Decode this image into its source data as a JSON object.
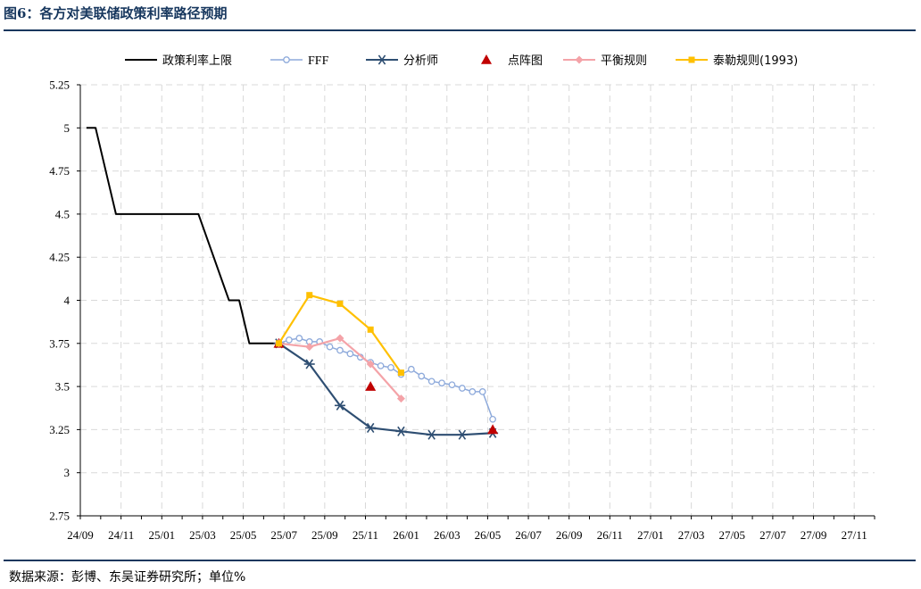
{
  "figure": {
    "title": "图6：各方对美联储政策利率路径预期",
    "source": "数据来源：彭博、东吴证券研究所；单位%"
  },
  "chart_data": {
    "type": "line",
    "categories": [
      "24/09",
      "24/10",
      "24/11",
      "24/12",
      "25/01",
      "25/02",
      "25/03",
      "25/04",
      "25/05",
      "25/06",
      "25/07",
      "25/08",
      "25/09",
      "25/10",
      "25/11",
      "25/12",
      "26/01",
      "26/02",
      "26/03",
      "26/04",
      "26/05",
      "26/06",
      "26/07",
      "26/08",
      "26/09",
      "26/10",
      "26/11",
      "26/12",
      "27/01",
      "27/02",
      "27/03",
      "27/04",
      "27/05",
      "27/06",
      "27/07",
      "27/08",
      "27/09",
      "27/10",
      "27/11",
      "27/12"
    ],
    "x_tick_labels": [
      "24/09",
      "24/11",
      "25/01",
      "25/03",
      "25/05",
      "25/07",
      "25/09",
      "25/11",
      "26/01",
      "26/03",
      "26/05",
      "26/07",
      "26/09",
      "26/11",
      "27/01",
      "27/03",
      "27/05",
      "27/07",
      "27/09",
      "27/11"
    ],
    "ylim": [
      2.75,
      5.25
    ],
    "y_ticks": [
      "2.75",
      "3",
      "3.25",
      "3.5",
      "3.75",
      "4",
      "4.25",
      "4.5",
      "4.75",
      "5",
      "5.25"
    ],
    "grid": true,
    "legend_position": "top",
    "series": [
      {
        "name": "政策利率上限",
        "color": "#000000",
        "marker": "none",
        "points": [
          [
            0.3,
            5.0
          ],
          [
            0.75,
            5.0
          ],
          [
            1.75,
            4.5
          ],
          [
            5.8,
            4.5
          ],
          [
            7.3,
            4.0
          ],
          [
            7.8,
            4.0
          ],
          [
            8.3,
            3.75
          ],
          [
            9.75,
            3.75
          ]
        ]
      },
      {
        "name": "FFF",
        "color": "#8eaadb",
        "marker": "circle",
        "points": [
          [
            9.75,
            3.75
          ],
          [
            10.25,
            3.77
          ],
          [
            10.75,
            3.78
          ],
          [
            11.25,
            3.76
          ],
          [
            11.75,
            3.76
          ],
          [
            12.25,
            3.73
          ],
          [
            12.75,
            3.71
          ],
          [
            13.25,
            3.69
          ],
          [
            13.75,
            3.67
          ],
          [
            14.25,
            3.64
          ],
          [
            14.75,
            3.62
          ],
          [
            15.25,
            3.61
          ],
          [
            15.75,
            3.57
          ],
          [
            16.25,
            3.6
          ],
          [
            16.75,
            3.56
          ],
          [
            17.25,
            3.53
          ],
          [
            17.75,
            3.52
          ],
          [
            18.25,
            3.51
          ],
          [
            18.75,
            3.49
          ],
          [
            19.25,
            3.47
          ],
          [
            19.75,
            3.47
          ],
          [
            20.25,
            3.31
          ]
        ]
      },
      {
        "name": "分析师",
        "color": "#2e4e72",
        "marker": "star",
        "points": [
          [
            9.75,
            3.75
          ],
          [
            11.25,
            3.63
          ],
          [
            12.75,
            3.39
          ],
          [
            14.25,
            3.26
          ],
          [
            15.75,
            3.24
          ],
          [
            17.25,
            3.22
          ],
          [
            18.75,
            3.22
          ],
          [
            20.25,
            3.23
          ]
        ]
      },
      {
        "name": "点阵图",
        "color": "#c00000",
        "marker": "triangle",
        "points": [
          [
            9.75,
            3.75
          ],
          [
            14.25,
            3.5
          ],
          [
            20.25,
            3.25
          ]
        ]
      },
      {
        "name": "平衡规则",
        "color": "#f4a3a8",
        "marker": "diamond",
        "points": [
          [
            9.75,
            3.75
          ],
          [
            11.25,
            3.73
          ],
          [
            12.75,
            3.78
          ],
          [
            14.25,
            3.63
          ],
          [
            15.75,
            3.43
          ]
        ]
      },
      {
        "name": "泰勒规则(1993)",
        "color": "#ffc000",
        "marker": "square",
        "points": [
          [
            9.75,
            3.75
          ],
          [
            11.25,
            4.03
          ],
          [
            12.75,
            3.98
          ],
          [
            14.25,
            3.83
          ],
          [
            15.75,
            3.58
          ]
        ]
      }
    ]
  }
}
